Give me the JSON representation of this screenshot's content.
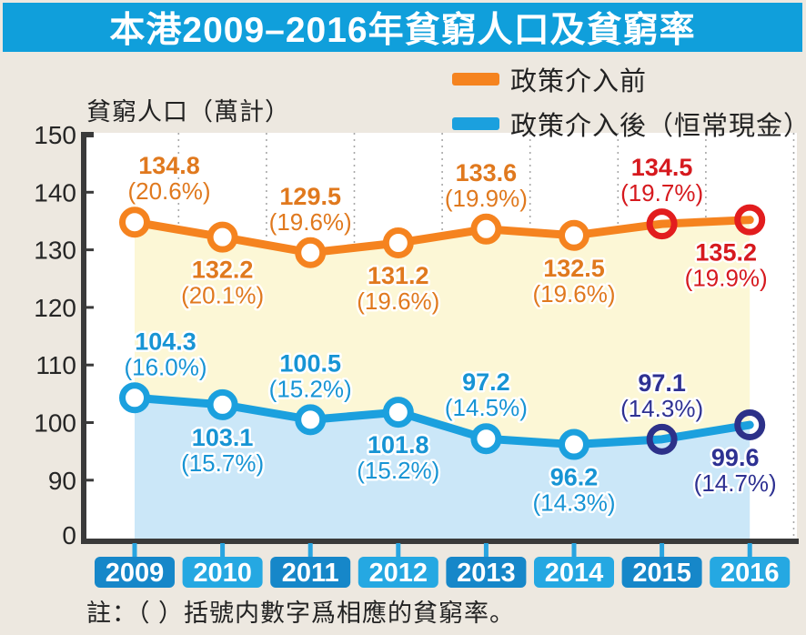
{
  "header": {
    "title": "本港2009–2016年貧窮人口及貧窮率",
    "bg_color": "#109FDB",
    "text_color": "#FFFFFF"
  },
  "legend": {
    "items": [
      {
        "label": "政策介入前",
        "color": "#F5831F"
      },
      {
        "label": "政策介入後（恒常現金）",
        "color": "#1BA0DE"
      }
    ]
  },
  "note": "註：（ ）括號内數字爲相應的貧窮率。",
  "chart_data": {
    "type": "line",
    "title": "本港2009–2016年貧窮人口及貧窮率",
    "ylabel": "貧窮人口（萬計）",
    "categories": [
      "2009",
      "2010",
      "2011",
      "2012",
      "2013",
      "2014",
      "2015",
      "2016"
    ],
    "ytick_labels": [
      "150",
      "140",
      "130",
      "120",
      "110",
      "100",
      "90",
      "0"
    ],
    "ytick_values": [
      150,
      140,
      130,
      120,
      110,
      100,
      90,
      0
    ],
    "axis_note": "y-axis broken between 0 and 90; vertical dotted gridlines between year columns",
    "series": [
      {
        "name": "政策介入前",
        "values": [
          134.8,
          132.2,
          129.5,
          131.2,
          133.6,
          132.5,
          134.5,
          135.2
        ],
        "rates": [
          "20.6%",
          "20.1%",
          "19.6%",
          "19.6%",
          "19.9%",
          "19.6%",
          "19.7%",
          "19.9%"
        ],
        "line_color": "#F5831F",
        "label_color": "#E0791E",
        "highlight_color": "#E21D1E",
        "highlight_label_color": "#D6191E",
        "highlight_from_index": 6,
        "label_positions": [
          "above",
          "below",
          "above",
          "below",
          "above",
          "below",
          "above",
          "below"
        ],
        "label_dx": [
          38,
          0,
          0,
          0,
          0,
          0,
          0,
          -26
        ]
      },
      {
        "name": "政策介入後（恒常現金）",
        "values": [
          104.3,
          103.1,
          100.5,
          101.8,
          97.2,
          96.2,
          97.1,
          99.6
        ],
        "rates": [
          "16.0%",
          "15.7%",
          "15.2%",
          "15.2%",
          "14.5%",
          "14.3%",
          "14.3%",
          "14.7%"
        ],
        "line_color": "#1BA0DE",
        "label_color": "#1794D4",
        "highlight_color": "#2D3189",
        "highlight_label_color": "#2E3192",
        "highlight_from_index": 6,
        "label_positions": [
          "above",
          "below",
          "above",
          "below",
          "above",
          "below",
          "above",
          "below"
        ],
        "label_dx": [
          34,
          0,
          0,
          0,
          0,
          0,
          0,
          -16
        ]
      }
    ],
    "fills": {
      "between_series": "#FCF7D6",
      "below_lower_series": "#CBE7F8"
    },
    "x_axis": {
      "year_box_colors": [
        "#1687C9",
        "#25A8E2"
      ],
      "connector_color": "#28A4E0",
      "year_text_color": "#FFFFFF"
    },
    "colors": {
      "page_bg": "#EDE8E0",
      "plot_bg": "#FFFFFF",
      "axis": "#3A3A3A",
      "grid": "#A8A8A8",
      "tick_text": "#262626"
    }
  }
}
